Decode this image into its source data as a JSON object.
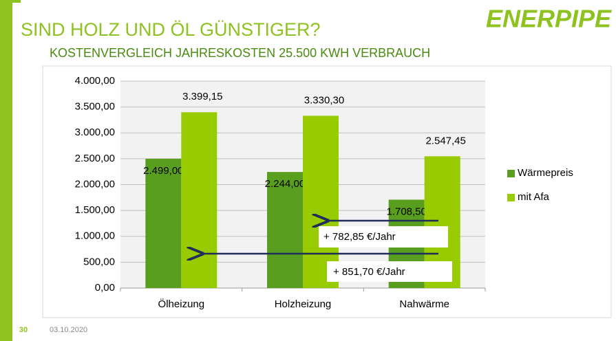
{
  "logo": "ENERPIPE",
  "page_number": "30",
  "date": "03.10.2020",
  "chart_data": {
    "type": "bar",
    "title": "SIND HOLZ UND ÖL GÜNSTIGER?",
    "subtitle": "KOSTENVERGLEICH JAHRESKOSTEN 25.500 KWH VERBRAUCH",
    "categories": [
      "Ölheizung",
      "Holzheizung",
      "Nahwärme"
    ],
    "series": [
      {
        "name": "Wärmepreis",
        "color": "#5a9e1f",
        "values": [
          2499.0,
          2244.0,
          1708.5
        ],
        "value_labels": [
          "2.499,00",
          "2.244,00",
          "1.708,50"
        ]
      },
      {
        "name": "mit Afa",
        "color": "#99cc00",
        "values": [
          3399.15,
          3330.3,
          2547.45
        ],
        "value_labels": [
          "3.399,15",
          "3.330,30",
          "2.547,45"
        ]
      }
    ],
    "ylim": [
      0,
      4000
    ],
    "yticks": [
      {
        "value": 0,
        "label": "0,00"
      },
      {
        "value": 500,
        "label": "500,00"
      },
      {
        "value": 1000,
        "label": "1.000,00"
      },
      {
        "value": 1500,
        "label": "1.500,00"
      },
      {
        "value": 2000,
        "label": "2.000,00"
      },
      {
        "value": 2500,
        "label": "2.500,00"
      },
      {
        "value": 3000,
        "label": "3.000,00"
      },
      {
        "value": 3500,
        "label": "3.500,00"
      },
      {
        "value": 4000,
        "label": "4.000,00"
      }
    ],
    "grid": true,
    "legend": "right",
    "annotations": [
      "+ 782,85 €/Jahr",
      "+ 851,70 €/Jahr"
    ]
  }
}
